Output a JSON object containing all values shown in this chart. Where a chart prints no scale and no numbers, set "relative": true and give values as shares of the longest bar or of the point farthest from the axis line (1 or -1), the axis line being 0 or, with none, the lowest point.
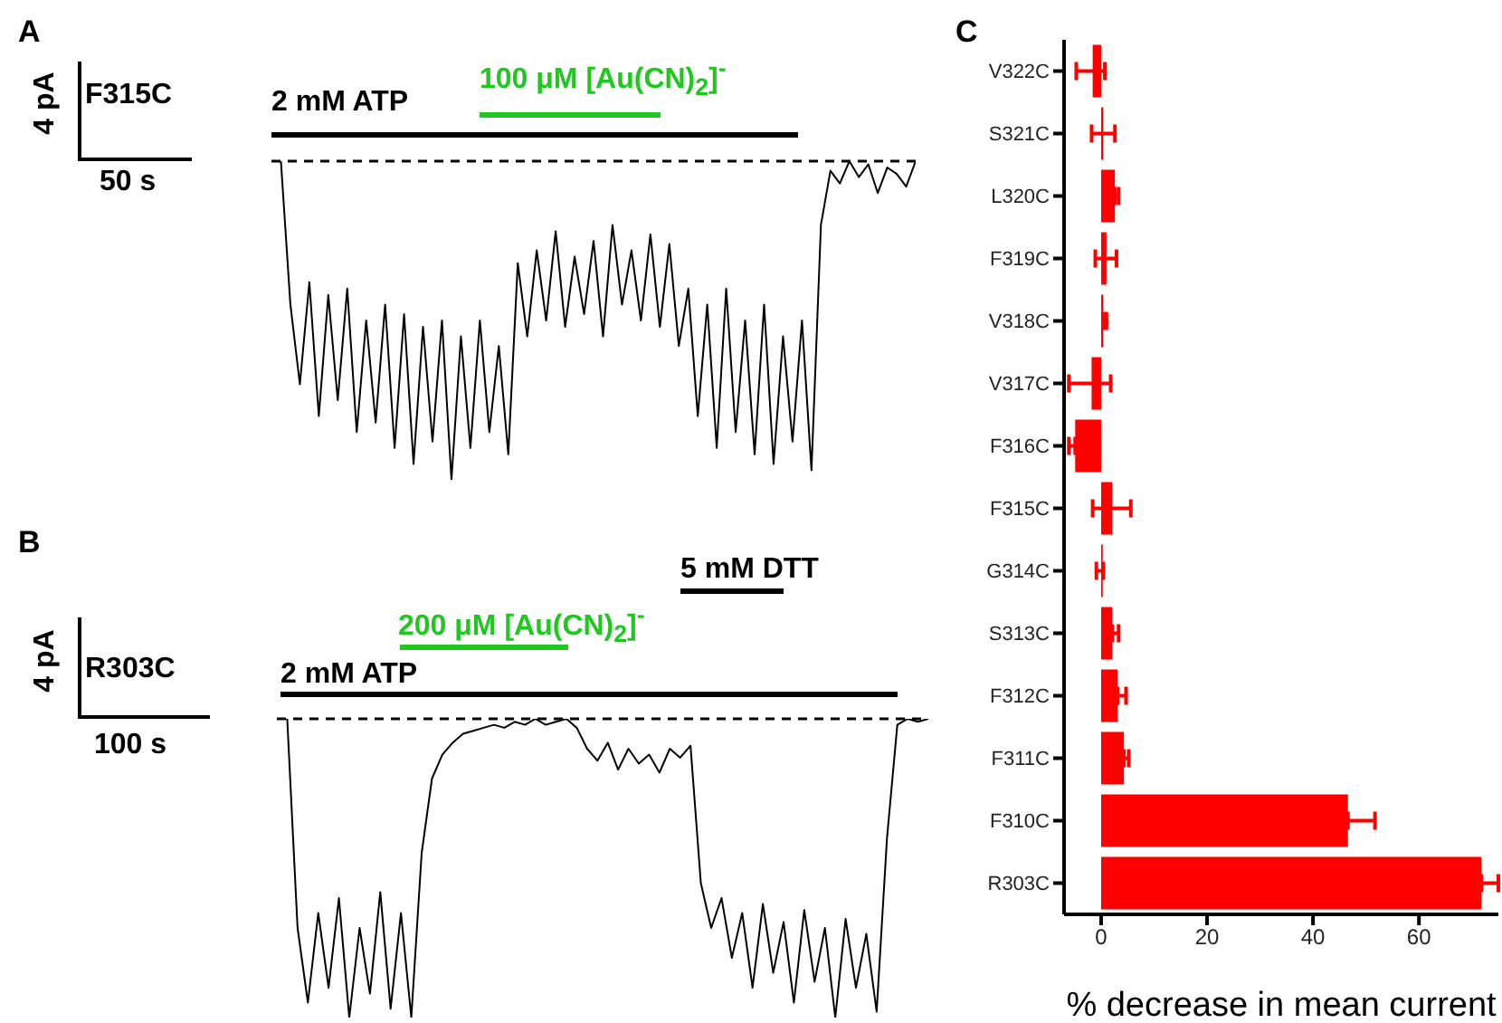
{
  "chart_data": [
    {
      "type": "line",
      "relative": true,
      "legend": false,
      "categories": [
        null,
        null,
        null,
        null,
        null,
        null,
        null,
        null,
        null,
        null,
        null,
        null,
        null,
        null,
        null,
        null,
        null,
        null,
        null,
        null,
        null,
        null,
        null,
        null,
        null,
        null,
        null,
        null,
        null,
        null,
        null,
        null,
        null,
        null,
        null,
        null,
        null,
        null,
        null,
        null,
        null,
        null,
        null,
        null,
        null,
        null,
        null,
        null,
        null,
        null,
        null,
        null,
        null,
        null,
        null,
        null,
        null,
        null,
        null,
        null,
        null,
        null,
        null,
        null,
        null,
        null,
        null,
        null,
        null
      ],
      "series": [
        {
          "color": "#000000",
          "values": [
            0,
            0,
            -0.45,
            -0.7,
            -0.38,
            -0.8,
            -0.42,
            -0.75,
            -0.4,
            -0.85,
            -0.5,
            -0.82,
            -0.45,
            -0.9,
            -0.48,
            -0.95,
            -0.52,
            -0.88,
            -0.5,
            -1,
            -0.55,
            -0.9,
            -0.5,
            -0.85,
            -0.58,
            -0.92,
            -0.32,
            -0.55,
            -0.28,
            -0.5,
            -0.22,
            -0.52,
            -0.3,
            -0.48,
            -0.25,
            -0.55,
            -0.2,
            -0.45,
            -0.28,
            -0.5,
            -0.23,
            -0.52,
            -0.26,
            -0.58,
            -0.4,
            -0.8,
            -0.45,
            -0.9,
            -0.4,
            -0.85,
            -0.5,
            -0.92,
            -0.45,
            -0.95,
            -0.55,
            -0.88,
            -0.5,
            -0.97,
            -0.2,
            -0.03,
            -0.07,
            0,
            -0.05,
            -0.01,
            -0.1,
            -0.02,
            -0.04,
            -0.08,
            0
          ]
        }
      ],
      "ref_lines": [
        {
          "axis": "y",
          "value": 0,
          "color": "#000000",
          "line_style": "dashed"
        }
      ],
      "annotations": [
        "A",
        "F315C",
        "4 pA",
        "50 s",
        "2 mM ATP",
        "100 μM [Au(CN)$_{2}$]$^{-}$"
      ]
    },
    {
      "type": "line",
      "relative": true,
      "legend": false,
      "categories": [
        null,
        null,
        null,
        null,
        null,
        null,
        null,
        null,
        null,
        null,
        null,
        null,
        null,
        null,
        null,
        null,
        null,
        null,
        null,
        null,
        null,
        null,
        null,
        null,
        null,
        null,
        null,
        null,
        null,
        null,
        null,
        null,
        null,
        null,
        null,
        null,
        null,
        null,
        null,
        null,
        null,
        null,
        null,
        null,
        null,
        null,
        null,
        null,
        null,
        null,
        null,
        null,
        null,
        null,
        null,
        null,
        null,
        null,
        null,
        null,
        null,
        null,
        null,
        null
      ],
      "series": [
        {
          "color": "#000000",
          "values": [
            0,
            0,
            -0.7,
            -0.95,
            -0.65,
            -0.9,
            -0.6,
            -1,
            -0.7,
            -0.92,
            -0.58,
            -0.97,
            -0.65,
            -1,
            -0.45,
            -0.2,
            -0.12,
            -0.08,
            -0.05,
            -0.04,
            -0.03,
            -0.02,
            -0.03,
            -0.01,
            -0.02,
            0,
            -0.02,
            -0.01,
            0,
            -0.03,
            -0.1,
            -0.14,
            -0.08,
            -0.17,
            -0.1,
            -0.15,
            -0.12,
            -0.18,
            -0.1,
            -0.13,
            -0.09,
            -0.55,
            -0.7,
            -0.6,
            -0.8,
            -0.65,
            -0.9,
            -0.62,
            -0.85,
            -0.68,
            -0.95,
            -0.64,
            -0.88,
            -0.7,
            -1,
            -0.67,
            -0.9,
            -0.72,
            -0.98,
            -0.4,
            -0.02,
            0,
            -0.01,
            0
          ]
        }
      ],
      "ref_lines": [
        {
          "axis": "y",
          "value": 0,
          "color": "#000000",
          "line_style": "dashed"
        }
      ],
      "annotations": [
        "B",
        "R303C",
        "4 pA",
        "100 s",
        "2 mM ATP",
        "200 μM [Au(CN)$_{2}$]$^{-}$",
        "5 mM DTT"
      ]
    },
    {
      "type": "bar",
      "orientation": "horizontal",
      "legend": false,
      "grid": false,
      "categories": [
        "V322C",
        "S321C",
        "L320C",
        "F319C",
        "V318C",
        "V317C",
        "F316C",
        "F315C",
        "G314C",
        "S313C",
        "F312C",
        "F311C",
        "F310C",
        "R303C"
      ],
      "values": [
        -1.6,
        0.4,
        2.6,
        1.0,
        0.4,
        -1.8,
        -4.9,
        2.1,
        0.3,
        2.1,
        3.1,
        4.3,
        46.6,
        71.8
      ],
      "errors": [
        [
          -4.7,
          0.7
        ],
        [
          -1.8,
          2.6
        ],
        [
          2.6,
          3.3
        ],
        [
          -1.1,
          2.9
        ],
        [
          0.4,
          1.0
        ],
        [
          -6.1,
          1.8
        ],
        [
          -6.1,
          -4.9
        ],
        [
          -1.6,
          5.6
        ],
        [
          -0.9,
          0.4
        ],
        [
          2.1,
          3.3
        ],
        [
          3.1,
          4.7
        ],
        [
          4.3,
          5.2
        ],
        [
          46.6,
          51.7
        ],
        [
          71.8,
          75
        ]
      ],
      "color": "#ff0000",
      "xlim": [
        -7,
        75
      ],
      "xticks": [
        0,
        20,
        40,
        60
      ],
      "xlabel": "% decrease in mean current",
      "annotations": [
        "C"
      ]
    }
  ]
}
